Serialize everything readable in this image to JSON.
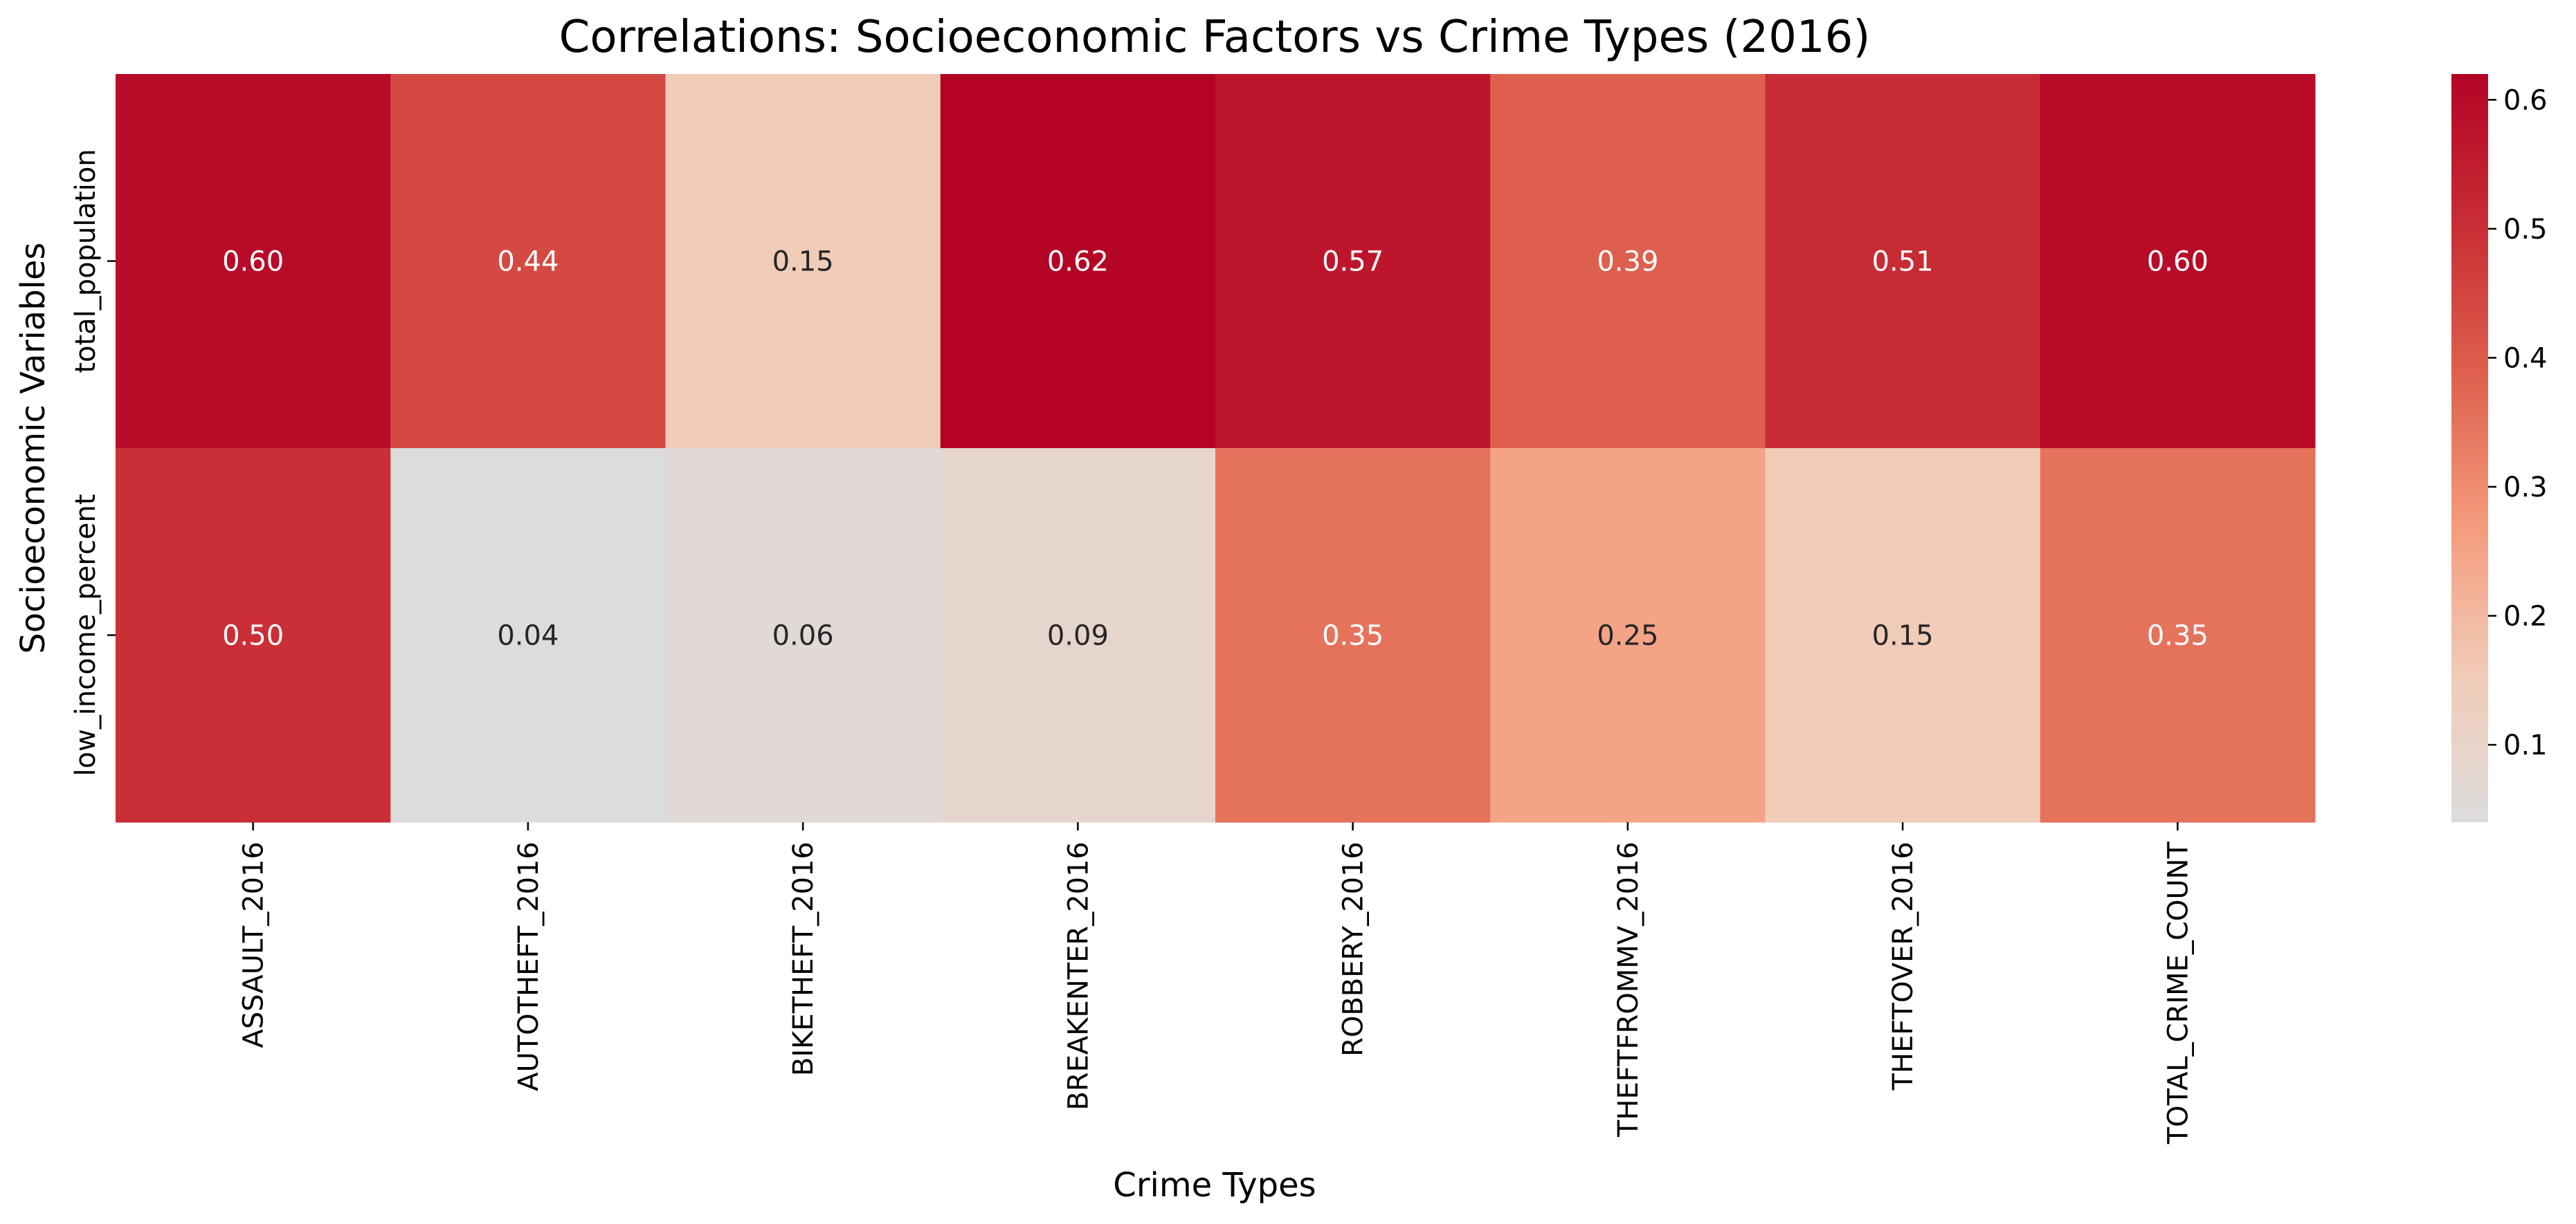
{
  "chart_data": {
    "type": "heatmap",
    "title": "Correlations: Socioeconomic Factors vs Crime Types (2016)",
    "xlabel": "Crime Types",
    "ylabel": "Socioeconomic Variables",
    "x_categories": [
      "ASSAULT_2016",
      "AUTOTHEFT_2016",
      "BIKETHEFT_2016",
      "BREAKENTER_2016",
      "ROBBERY_2016",
      "THEFTFROMMV_2016",
      "THEFTOVER_2016",
      "TOTAL_CRIME_COUNT"
    ],
    "y_categories": [
      "total_population",
      "low_income_percent"
    ],
    "values": [
      [
        0.6,
        0.44,
        0.15,
        0.62,
        0.57,
        0.39,
        0.51,
        0.6
      ],
      [
        0.5,
        0.04,
        0.06,
        0.09,
        0.35,
        0.25,
        0.15,
        0.35
      ]
    ],
    "value_labels": [
      [
        "0.60",
        "0.44",
        "0.15",
        "0.62",
        "0.57",
        "0.39",
        "0.51",
        "0.60"
      ],
      [
        "0.50",
        "0.04",
        "0.06",
        "0.09",
        "0.35",
        "0.25",
        "0.15",
        "0.35"
      ]
    ],
    "colorbar": {
      "colormap": "coolwarm",
      "range": [
        0.04,
        0.62
      ],
      "ticks": [
        0.1,
        0.2,
        0.3,
        0.4,
        0.5,
        0.6
      ],
      "tick_labels": [
        "0.1",
        "0.2",
        "0.3",
        "0.4",
        "0.5",
        "0.6"
      ]
    }
  }
}
